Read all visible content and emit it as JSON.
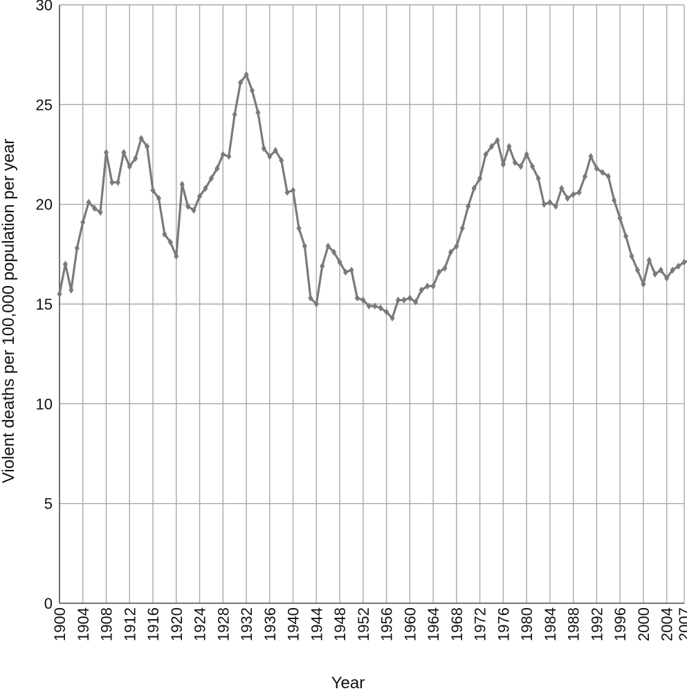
{
  "chart_data": {
    "type": "line",
    "title": "",
    "xlabel": "Year",
    "ylabel": "Violent deaths per 100,000 population per year",
    "ylim": [
      0,
      30
    ],
    "xlim": [
      1900,
      2007
    ],
    "grid": true,
    "legend": "none",
    "y_ticks": [
      "0",
      "5",
      "10",
      "15",
      "20",
      "25",
      "30"
    ],
    "x_ticks": [
      "1900",
      "1904",
      "1908",
      "1912",
      "1916",
      "1920",
      "1924",
      "1928",
      "1932",
      "1936",
      "1940",
      "1944",
      "1948",
      "1952",
      "1956",
      "1960",
      "1964",
      "1968",
      "1972",
      "1976",
      "1980",
      "1984",
      "1988",
      "1992",
      "1996",
      "2000",
      "2004",
      "2007"
    ],
    "colors": {
      "line": "#7a7a7a",
      "grid": "#a8a8a8",
      "axis": "#555555"
    },
    "series": [
      {
        "x": [
          1900,
          1901,
          1902,
          1903,
          1904,
          1905,
          1906,
          1907,
          1908,
          1909,
          1910,
          1911,
          1912,
          1913,
          1914,
          1915,
          1916,
          1917,
          1918,
          1919,
          1920,
          1921,
          1922,
          1923,
          1924,
          1925,
          1926,
          1927,
          1928,
          1929,
          1930,
          1931,
          1932,
          1933,
          1934,
          1935,
          1936,
          1937,
          1938,
          1939,
          1940,
          1941,
          1942,
          1943,
          1944,
          1945,
          1946,
          1947,
          1948,
          1949,
          1950,
          1951,
          1952,
          1953,
          1954,
          1955,
          1956,
          1957,
          1958,
          1959,
          1960,
          1961,
          1962,
          1963,
          1964,
          1965,
          1966,
          1967,
          1968,
          1969,
          1970,
          1971,
          1972,
          1973,
          1974,
          1975,
          1976,
          1977,
          1978,
          1979,
          1980,
          1981,
          1982,
          1983,
          1984,
          1985,
          1986,
          1987,
          1988,
          1989,
          1990,
          1991,
          1992,
          1993,
          1994,
          1995,
          1996,
          1997,
          1998,
          1999,
          2000,
          2001,
          2002,
          2003,
          2004,
          2005,
          2006,
          2007,
          2008
        ],
        "values": [
          15.5,
          17.0,
          15.7,
          17.8,
          19.1,
          20.1,
          19.8,
          19.6,
          22.6,
          21.1,
          21.1,
          22.6,
          21.9,
          22.3,
          23.3,
          22.9,
          20.7,
          20.3,
          18.5,
          18.1,
          17.4,
          21.0,
          19.9,
          19.7,
          20.4,
          20.8,
          21.3,
          21.8,
          22.5,
          22.4,
          24.5,
          26.1,
          26.5,
          25.7,
          24.6,
          22.8,
          22.4,
          22.7,
          22.2,
          20.6,
          20.7,
          18.8,
          17.9,
          15.3,
          15.0,
          16.9,
          17.9,
          17.6,
          17.1,
          16.6,
          16.7,
          15.3,
          15.2,
          14.9,
          14.9,
          14.8,
          14.6,
          14.3,
          15.2,
          15.2,
          15.3,
          15.1,
          15.7,
          15.9,
          15.9,
          16.6,
          16.8,
          17.6,
          17.9,
          18.8,
          19.9,
          20.8,
          21.3,
          22.5,
          22.9,
          23.2,
          22.0,
          22.9,
          22.1,
          21.9,
          22.5,
          21.9,
          21.3,
          20.0,
          20.1,
          19.9,
          20.8,
          20.3,
          20.5,
          20.6,
          21.4,
          22.4,
          21.8,
          21.6,
          21.4,
          20.2,
          19.3,
          18.4,
          17.4,
          16.7,
          16.0,
          17.2,
          16.5,
          16.7,
          16.3,
          16.7,
          16.9,
          17.1,
          17.2
        ]
      }
    ]
  }
}
